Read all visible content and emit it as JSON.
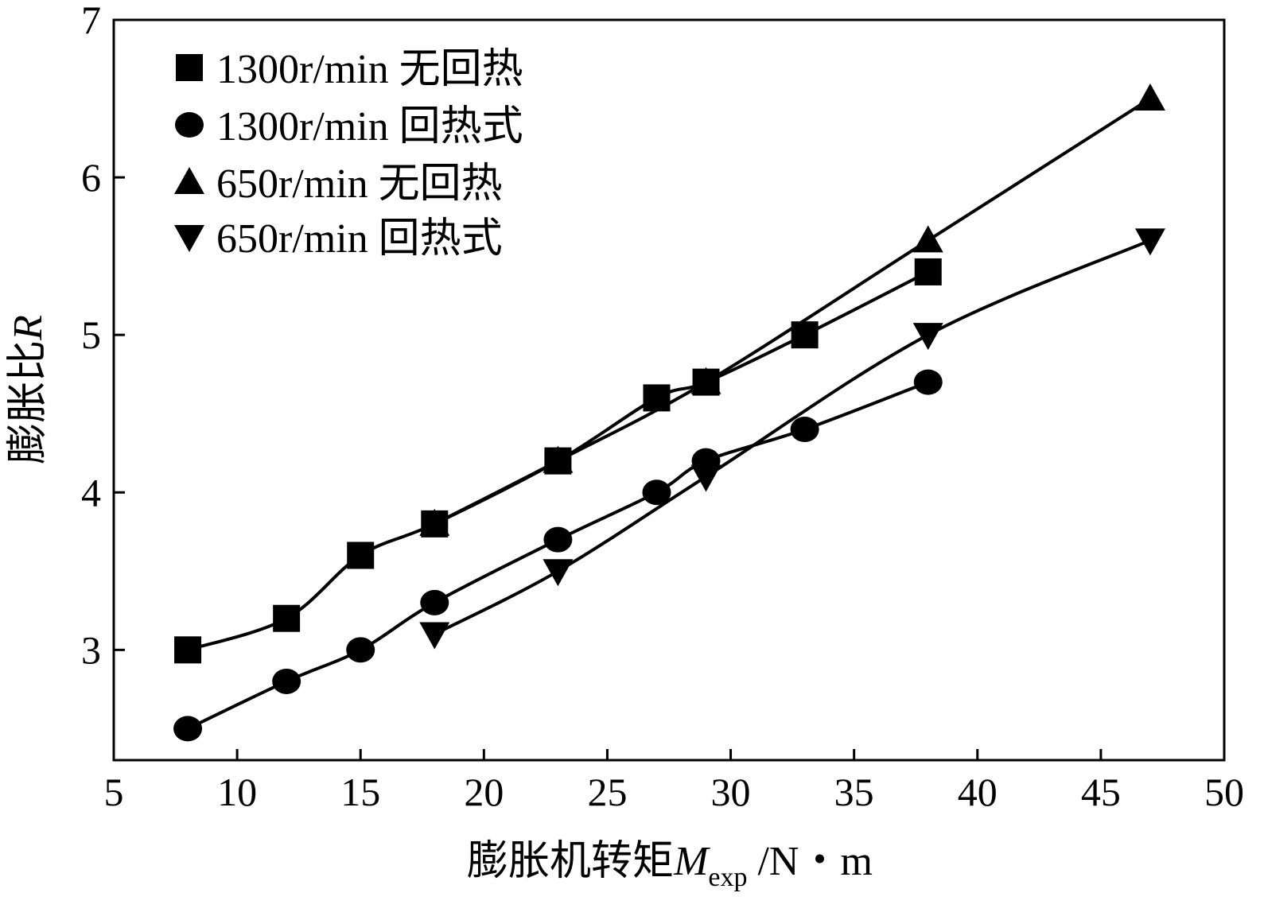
{
  "chart_data": {
    "type": "line",
    "title": "",
    "xlabel": "膨胀机转矩",
    "xlabel_symbol": "M",
    "xlabel_subscript": "exp",
    "xlabel_unit": " /N・m",
    "ylabel": "膨胀比",
    "ylabel_symbol": "R",
    "xlim": [
      5,
      50
    ],
    "ylim": [
      2.3,
      7
    ],
    "xticks": [
      5,
      10,
      15,
      20,
      25,
      30,
      35,
      40,
      45,
      50
    ],
    "yticks": [
      3,
      4,
      5,
      6,
      7
    ],
    "grid": false,
    "legend_position": "top-left",
    "series": [
      {
        "name": "1300r/min 无回热",
        "marker": "square",
        "x": [
          8,
          12,
          15,
          18,
          23,
          27,
          29,
          33,
          38
        ],
        "y": [
          3.0,
          3.2,
          3.6,
          3.8,
          4.2,
          4.6,
          4.7,
          5.0,
          5.4
        ]
      },
      {
        "name": "1300r/min 回热式",
        "marker": "circle",
        "x": [
          8,
          12,
          15,
          18,
          23,
          27,
          29,
          33,
          38
        ],
        "y": [
          2.5,
          2.8,
          3.0,
          3.3,
          3.7,
          4.0,
          4.2,
          4.4,
          4.7
        ]
      },
      {
        "name": "650r/min 无回热",
        "marker": "triangle-up",
        "x": [
          18,
          23,
          29,
          38,
          47
        ],
        "y": [
          3.8,
          4.2,
          4.7,
          5.6,
          6.5
        ]
      },
      {
        "name": "650r/min 回热式",
        "marker": "triangle-down",
        "x": [
          18,
          23,
          29,
          38,
          47
        ],
        "y": [
          3.1,
          3.5,
          4.1,
          5.0,
          5.6
        ]
      }
    ]
  }
}
